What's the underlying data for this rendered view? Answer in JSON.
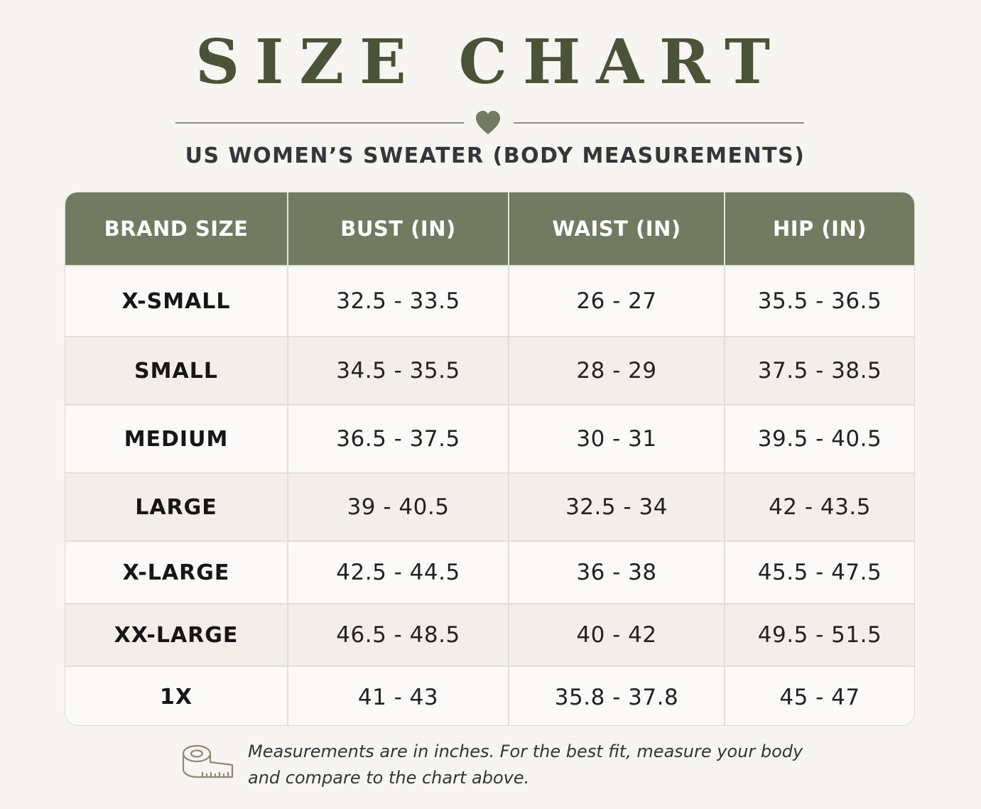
{
  "title": "SIZE CHART",
  "subtitle": "US WOMEN’S SWEATER (BODY MEASUREMENTS)",
  "icons": {
    "divider": "heart-icon",
    "note": "measuring-tape-icon"
  },
  "colors": {
    "accent": "#727b62",
    "title": "#4a5237",
    "background": "#f7f5f1"
  },
  "table": {
    "headers": [
      "BRAND SIZE",
      "BUST (IN)",
      "WAIST (IN)",
      "HIP (IN)"
    ],
    "rows": [
      [
        "X-SMALL",
        "32.5 - 33.5",
        "26 - 27",
        "35.5 - 36.5"
      ],
      [
        "SMALL",
        "34.5 - 35.5",
        "28 - 29",
        "37.5 - 38.5"
      ],
      [
        "MEDIUM",
        "36.5 - 37.5",
        "30 - 31",
        "39.5 - 40.5"
      ],
      [
        "LARGE",
        "39 - 40.5",
        "32.5 - 34",
        "42 - 43.5"
      ],
      [
        "X-LARGE",
        "42.5 - 44.5",
        "36 - 38",
        "45.5 - 47.5"
      ],
      [
        "XX-LARGE",
        "46.5 - 48.5",
        "40 - 42",
        "49.5 - 51.5"
      ],
      [
        "1X",
        "41 - 43",
        "35.8 - 37.8",
        "45 - 47"
      ]
    ]
  },
  "footnote": {
    "line1": "Measurements are in inches. For the best fit, measure your body",
    "line2": "and compare to the chart above."
  }
}
